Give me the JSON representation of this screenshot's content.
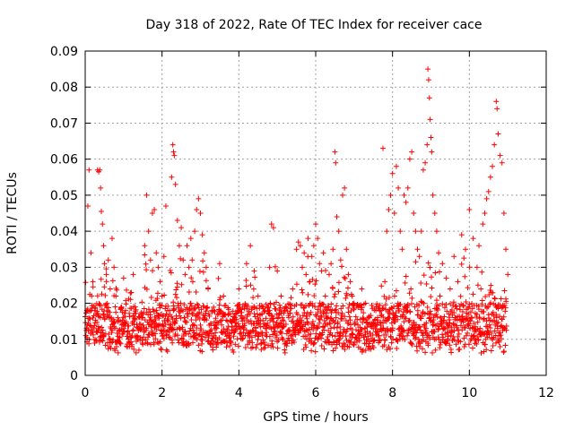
{
  "chart_data": {
    "type": "scatter",
    "title": "Day 318 of 2022, Rate Of TEC Index for receiver cace",
    "xlabel": "GPS time / hours",
    "ylabel": "ROTI / TECUs",
    "xlim": [
      0,
      12
    ],
    "ylim": [
      0,
      0.09
    ],
    "xticks": [
      0,
      2,
      4,
      6,
      8,
      10,
      12
    ],
    "xtick_labels": [
      "0",
      "2",
      "4",
      "6",
      "8",
      "10",
      "12"
    ],
    "yticks": [
      0,
      0.01,
      0.02,
      0.03,
      0.04,
      0.05,
      0.06,
      0.07,
      0.08,
      0.09
    ],
    "ytick_labels": [
      "0",
      "0.01",
      "0.02",
      "0.03",
      "0.04",
      "0.05",
      "0.06",
      "0.07",
      "0.08",
      "0.09"
    ],
    "grid": true,
    "marker": "+",
    "color": "#ff0000",
    "series": [
      {
        "name": "ROTI",
        "points": [
          [
            0.05,
            0.0105
          ],
          [
            0.07,
            0.047
          ],
          [
            0.1,
            0.057
          ],
          [
            0.15,
            0.034
          ],
          [
            0.2,
            0.026
          ],
          [
            0.25,
            0.018
          ],
          [
            0.3,
            0.012
          ],
          [
            0.32,
            0.057
          ],
          [
            0.35,
            0.0565
          ],
          [
            0.38,
            0.057
          ],
          [
            0.4,
            0.052
          ],
          [
            0.42,
            0.0455
          ],
          [
            0.45,
            0.042
          ],
          [
            0.48,
            0.036
          ],
          [
            0.5,
            0.031
          ],
          [
            0.55,
            0.028
          ],
          [
            0.6,
            0.032
          ],
          [
            0.65,
            0.024
          ],
          [
            0.7,
            0.038
          ],
          [
            0.75,
            0.03
          ],
          [
            0.8,
            0.022
          ],
          [
            0.85,
            0.016
          ],
          [
            0.9,
            0.009
          ],
          [
            0.95,
            0.014
          ],
          [
            1.0,
            0.027
          ],
          [
            1.05,
            0.018
          ],
          [
            1.1,
            0.012
          ],
          [
            1.15,
            0.008
          ],
          [
            1.2,
            0.023
          ],
          [
            1.25,
            0.028
          ],
          [
            1.3,
            0.019
          ],
          [
            1.35,
            0.011
          ],
          [
            1.4,
            0.007
          ],
          [
            1.45,
            0.013
          ],
          [
            1.5,
            0.017
          ],
          [
            1.55,
            0.036
          ],
          [
            1.6,
            0.05
          ],
          [
            1.65,
            0.04
          ],
          [
            1.7,
            0.032
          ],
          [
            1.75,
            0.045
          ],
          [
            1.8,
            0.046
          ],
          [
            1.85,
            0.034
          ],
          [
            1.9,
            0.03
          ],
          [
            1.95,
            0.026
          ],
          [
            2.0,
            0.022
          ],
          [
            2.05,
            0.033
          ],
          [
            2.1,
            0.047
          ],
          [
            2.15,
            0.018
          ],
          [
            2.2,
            0.014
          ],
          [
            2.25,
            0.055
          ],
          [
            2.28,
            0.064
          ],
          [
            2.3,
            0.062
          ],
          [
            2.32,
            0.061
          ],
          [
            2.35,
            0.053
          ],
          [
            2.4,
            0.043
          ],
          [
            2.45,
            0.036
          ],
          [
            2.5,
            0.041
          ],
          [
            2.55,
            0.032
          ],
          [
            2.6,
            0.028
          ],
          [
            2.65,
            0.036
          ],
          [
            2.7,
            0.03
          ],
          [
            2.75,
            0.038
          ],
          [
            2.8,
            0.026
          ],
          [
            2.85,
            0.04
          ],
          [
            2.9,
            0.046
          ],
          [
            2.95,
            0.049
          ],
          [
            3.0,
            0.045
          ],
          [
            3.05,
            0.039
          ],
          [
            3.1,
            0.034
          ],
          [
            3.15,
            0.03
          ],
          [
            3.2,
            0.024
          ],
          [
            3.3,
            0.018
          ],
          [
            3.4,
            0.014
          ],
          [
            3.5,
            0.031
          ],
          [
            3.6,
            0.022
          ],
          [
            3.7,
            0.012
          ],
          [
            3.8,
            0.009
          ],
          [
            3.9,
            0.016
          ],
          [
            4.0,
            0.024
          ],
          [
            4.1,
            0.019
          ],
          [
            4.2,
            0.031
          ],
          [
            4.3,
            0.036
          ],
          [
            4.4,
            0.029
          ],
          [
            4.5,
            0.022
          ],
          [
            4.6,
            0.017
          ],
          [
            4.7,
            0.014
          ],
          [
            4.8,
            0.03
          ],
          [
            4.85,
            0.042
          ],
          [
            4.9,
            0.041
          ],
          [
            5.0,
            0.029
          ],
          [
            5.1,
            0.022
          ],
          [
            5.2,
            0.018
          ],
          [
            5.3,
            0.016
          ],
          [
            5.4,
            0.024
          ],
          [
            5.5,
            0.035
          ],
          [
            5.55,
            0.037
          ],
          [
            5.6,
            0.036
          ],
          [
            5.65,
            0.03
          ],
          [
            5.7,
            0.034
          ],
          [
            5.75,
            0.028
          ],
          [
            5.8,
            0.038
          ],
          [
            5.85,
            0.026
          ],
          [
            5.9,
            0.033
          ],
          [
            5.95,
            0.036
          ],
          [
            6.0,
            0.042
          ],
          [
            6.05,
            0.038
          ],
          [
            6.1,
            0.031
          ],
          [
            6.15,
            0.029
          ],
          [
            6.2,
            0.034
          ],
          [
            6.25,
            0.022
          ],
          [
            6.3,
            0.018
          ],
          [
            6.35,
            0.028
          ],
          [
            6.4,
            0.031
          ],
          [
            6.45,
            0.035
          ],
          [
            6.5,
            0.062
          ],
          [
            6.52,
            0.059
          ],
          [
            6.55,
            0.044
          ],
          [
            6.6,
            0.04
          ],
          [
            6.65,
            0.032
          ],
          [
            6.7,
            0.05
          ],
          [
            6.75,
            0.052
          ],
          [
            6.8,
            0.035
          ],
          [
            6.85,
            0.028
          ],
          [
            6.9,
            0.026
          ],
          [
            6.95,
            0.022
          ],
          [
            7.0,
            0.02
          ],
          [
            7.1,
            0.014
          ],
          [
            7.2,
            0.024
          ],
          [
            7.3,
            0.02
          ],
          [
            7.4,
            0.016
          ],
          [
            7.5,
            0.013
          ],
          [
            7.6,
            0.012
          ],
          [
            7.7,
            0.018
          ],
          [
            7.75,
            0.063
          ],
          [
            7.8,
            0.026
          ],
          [
            7.85,
            0.04
          ],
          [
            7.9,
            0.046
          ],
          [
            7.95,
            0.05
          ],
          [
            8.0,
            0.056
          ],
          [
            8.05,
            0.045
          ],
          [
            8.1,
            0.058
          ],
          [
            8.15,
            0.052
          ],
          [
            8.2,
            0.04
          ],
          [
            8.25,
            0.035
          ],
          [
            8.3,
            0.05
          ],
          [
            8.35,
            0.048
          ],
          [
            8.4,
            0.052
          ],
          [
            8.45,
            0.06
          ],
          [
            8.5,
            0.062
          ],
          [
            8.55,
            0.045
          ],
          [
            8.6,
            0.04
          ],
          [
            8.65,
            0.035
          ],
          [
            8.7,
            0.033
          ],
          [
            8.75,
            0.04
          ],
          [
            8.8,
            0.057
          ],
          [
            8.85,
            0.059
          ],
          [
            8.9,
            0.064
          ],
          [
            8.92,
            0.085
          ],
          [
            8.94,
            0.082
          ],
          [
            8.96,
            0.077
          ],
          [
            8.98,
            0.071
          ],
          [
            9.0,
            0.066
          ],
          [
            9.02,
            0.062
          ],
          [
            9.05,
            0.05
          ],
          [
            9.1,
            0.045
          ],
          [
            9.15,
            0.04
          ],
          [
            9.2,
            0.034
          ],
          [
            9.3,
            0.031
          ],
          [
            9.4,
            0.027
          ],
          [
            9.5,
            0.024
          ],
          [
            9.6,
            0.033
          ],
          [
            9.7,
            0.026
          ],
          [
            9.8,
            0.039
          ],
          [
            9.9,
            0.035
          ],
          [
            10.0,
            0.046
          ],
          [
            10.1,
            0.038
          ],
          [
            10.2,
            0.03
          ],
          [
            10.25,
            0.036
          ],
          [
            10.3,
            0.024
          ],
          [
            10.35,
            0.042
          ],
          [
            10.4,
            0.045
          ],
          [
            10.45,
            0.049
          ],
          [
            10.5,
            0.051
          ],
          [
            10.55,
            0.055
          ],
          [
            10.6,
            0.058
          ],
          [
            10.65,
            0.064
          ],
          [
            10.7,
            0.076
          ],
          [
            10.72,
            0.074
          ],
          [
            10.75,
            0.067
          ],
          [
            10.8,
            0.061
          ],
          [
            10.85,
            0.059
          ],
          [
            10.9,
            0.045
          ],
          [
            10.95,
            0.035
          ],
          [
            11.0,
            0.028
          ]
        ]
      }
    ]
  }
}
